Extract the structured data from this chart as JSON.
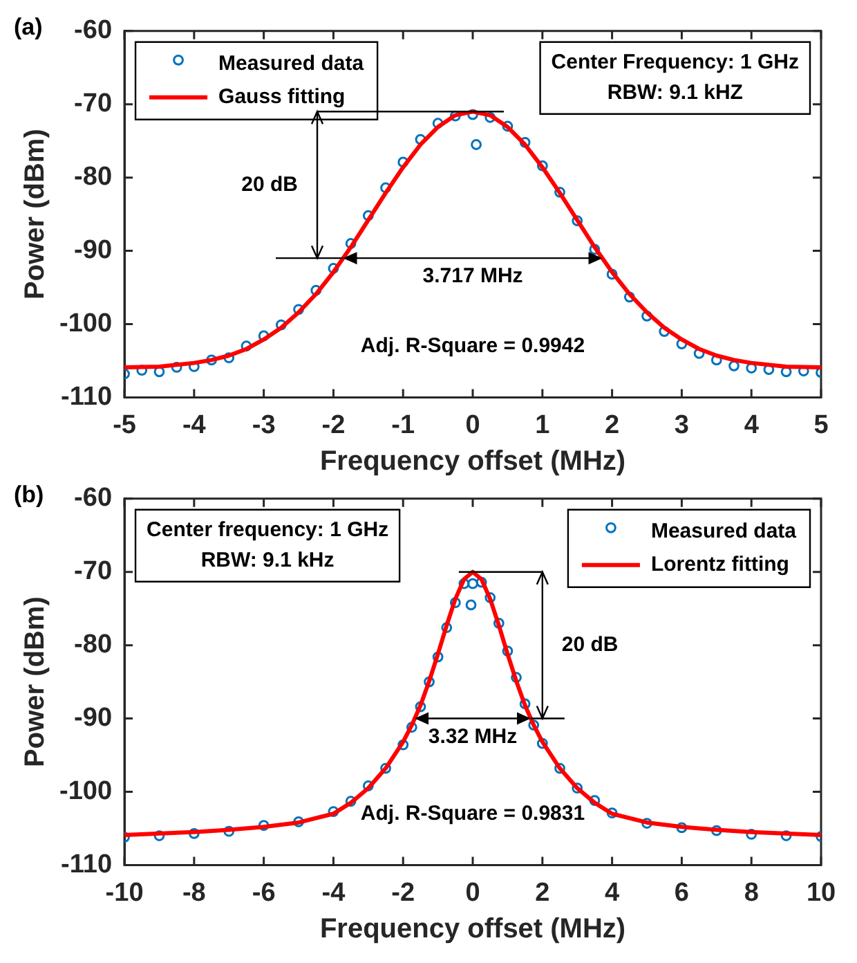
{
  "chart_data": [
    {
      "type": "scatter",
      "title": "(a)",
      "xlabel": "Frequency offset (MHz)",
      "ylabel": "Power (dBm)",
      "xlim": [
        -5,
        5
      ],
      "xticks": [
        -5,
        -4,
        -3,
        -2,
        -1,
        0,
        1,
        2,
        3,
        4,
        5
      ],
      "ylim": [
        -110,
        -60
      ],
      "yticks": [
        -110,
        -100,
        -90,
        -80,
        -70,
        -60
      ],
      "grid": false,
      "legend": "top left",
      "annotations": [
        "20 dB",
        "3.717 MHz",
        "Adj. R-Square = 0.9942",
        "Center Frequency: 1 GHz",
        "RBW: 9.1 kHZ"
      ],
      "series": [
        {
          "name": "Measured data",
          "marker": "circle",
          "color": "#0072bd",
          "x": [
            -5,
            -4.75,
            -4.5,
            -4.25,
            -4,
            -3.75,
            -3.5,
            -3.25,
            -3,
            -2.75,
            -2.5,
            -2.25,
            -2,
            -1.75,
            -1.5,
            -1.25,
            -1,
            -0.75,
            -0.5,
            -0.25,
            0,
            0.05,
            0.25,
            0.5,
            0.75,
            1,
            1.25,
            1.5,
            1.75,
            2,
            2.25,
            2.5,
            2.75,
            3,
            3.25,
            3.5,
            3.75,
            4,
            4.25,
            4.5,
            4.75,
            5
          ],
          "values": [
            -106.8,
            -106.3,
            -106.5,
            -105.9,
            -105.8,
            -104.9,
            -104.6,
            -103.0,
            -101.6,
            -100.1,
            -98.0,
            -95.4,
            -92.4,
            -89.0,
            -85.2,
            -81.4,
            -77.9,
            -74.8,
            -72.6,
            -71.6,
            -71.4,
            -75.5,
            -71.8,
            -73.0,
            -75.2,
            -78.4,
            -82.0,
            -85.9,
            -89.8,
            -93.2,
            -96.3,
            -98.9,
            -101.0,
            -102.7,
            -104.0,
            -104.9,
            -105.7,
            -106.0,
            -106.2,
            -106.5,
            -106.4,
            -106.6
          ]
        },
        {
          "name": "Gauss fitting",
          "type": "line",
          "color": "#ff0000",
          "x": [
            -5,
            -4.5,
            -4,
            -3.75,
            -3.5,
            -3.25,
            -3,
            -2.75,
            -2.5,
            -2.25,
            -2,
            -1.75,
            -1.5,
            -1.25,
            -1,
            -0.75,
            -0.5,
            -0.25,
            0,
            0.25,
            0.5,
            0.75,
            1,
            1.25,
            1.5,
            1.75,
            2,
            2.25,
            2.5,
            2.75,
            3,
            3.25,
            3.5,
            3.75,
            4,
            4.5,
            5
          ],
          "values": [
            -105.9,
            -105.8,
            -105.3,
            -104.9,
            -104.3,
            -103.4,
            -102.1,
            -100.5,
            -98.4,
            -95.9,
            -92.9,
            -89.5,
            -85.8,
            -82.1,
            -78.6,
            -75.5,
            -73.1,
            -71.5,
            -71,
            -71.5,
            -73.1,
            -75.5,
            -78.6,
            -82.1,
            -85.8,
            -89.5,
            -92.9,
            -95.9,
            -98.4,
            -100.5,
            -102.1,
            -103.4,
            -104.3,
            -104.9,
            -105.3,
            -105.8,
            -105.9
          ]
        }
      ]
    },
    {
      "type": "scatter",
      "title": "(b)",
      "xlabel": "Frequency offset (MHz)",
      "ylabel": "Power (dBm)",
      "xlim": [
        -10,
        10
      ],
      "xticks": [
        -10,
        -8,
        -6,
        -4,
        -2,
        0,
        2,
        4,
        6,
        8,
        10
      ],
      "ylim": [
        -110,
        -60
      ],
      "yticks": [
        -110,
        -100,
        -90,
        -80,
        -70,
        -60
      ],
      "grid": false,
      "legend": "top right",
      "annotations": [
        "20 dB",
        "3.32 MHz",
        "Adj. R-Square = 0.9831",
        "Center frequency: 1 GHz",
        "RBW: 9.1 kHz"
      ],
      "series": [
        {
          "name": "Measured data",
          "marker": "circle",
          "color": "#0072bd",
          "x": [
            -10,
            -9,
            -8,
            -7,
            -6,
            -5,
            -4,
            -3.5,
            -3,
            -2.5,
            -2,
            -1.75,
            -1.5,
            -1.25,
            -1,
            -0.75,
            -0.5,
            -0.25,
            -0.05,
            0,
            0.25,
            0.5,
            0.75,
            1,
            1.25,
            1.5,
            1.75,
            2,
            2.5,
            3,
            3.5,
            4,
            5,
            6,
            7,
            8,
            9,
            10
          ],
          "values": [
            -106.2,
            -106.0,
            -105.7,
            -105.4,
            -104.6,
            -104.1,
            -102.7,
            -101.3,
            -99.2,
            -96.8,
            -93.6,
            -91.2,
            -88.4,
            -85.0,
            -81.6,
            -77.6,
            -74.2,
            -71.6,
            -74.5,
            -71.6,
            -71.4,
            -73.5,
            -77.0,
            -80.8,
            -84.4,
            -88.0,
            -90.9,
            -93.4,
            -96.8,
            -99.5,
            -101.2,
            -102.9,
            -104.3,
            -104.9,
            -105.3,
            -105.8,
            -106.0,
            -106.1
          ]
        },
        {
          "name": "Lorentz fitting",
          "type": "line",
          "color": "#ff0000",
          "x": [
            -10,
            -8,
            -7,
            -6,
            -5,
            -4,
            -3.5,
            -3,
            -2.5,
            -2,
            -1.75,
            -1.5,
            -1.25,
            -1,
            -0.75,
            -0.5,
            -0.25,
            0,
            0.25,
            0.5,
            0.75,
            1,
            1.25,
            1.5,
            1.75,
            2,
            2.5,
            3,
            3.5,
            4,
            5,
            6,
            7,
            8,
            10
          ],
          "values": [
            -105.9,
            -105.5,
            -105.2,
            -104.8,
            -104.2,
            -103,
            -101.5,
            -99.5,
            -96.8,
            -93.2,
            -90.9,
            -88.2,
            -84.9,
            -81.2,
            -77.3,
            -73.7,
            -71.0,
            -70,
            -71.0,
            -73.7,
            -77.3,
            -81.2,
            -84.9,
            -88.2,
            -90.9,
            -93.2,
            -96.8,
            -99.5,
            -101.5,
            -103,
            -104.2,
            -104.8,
            -105.2,
            -105.5,
            -105.9
          ]
        }
      ]
    }
  ]
}
